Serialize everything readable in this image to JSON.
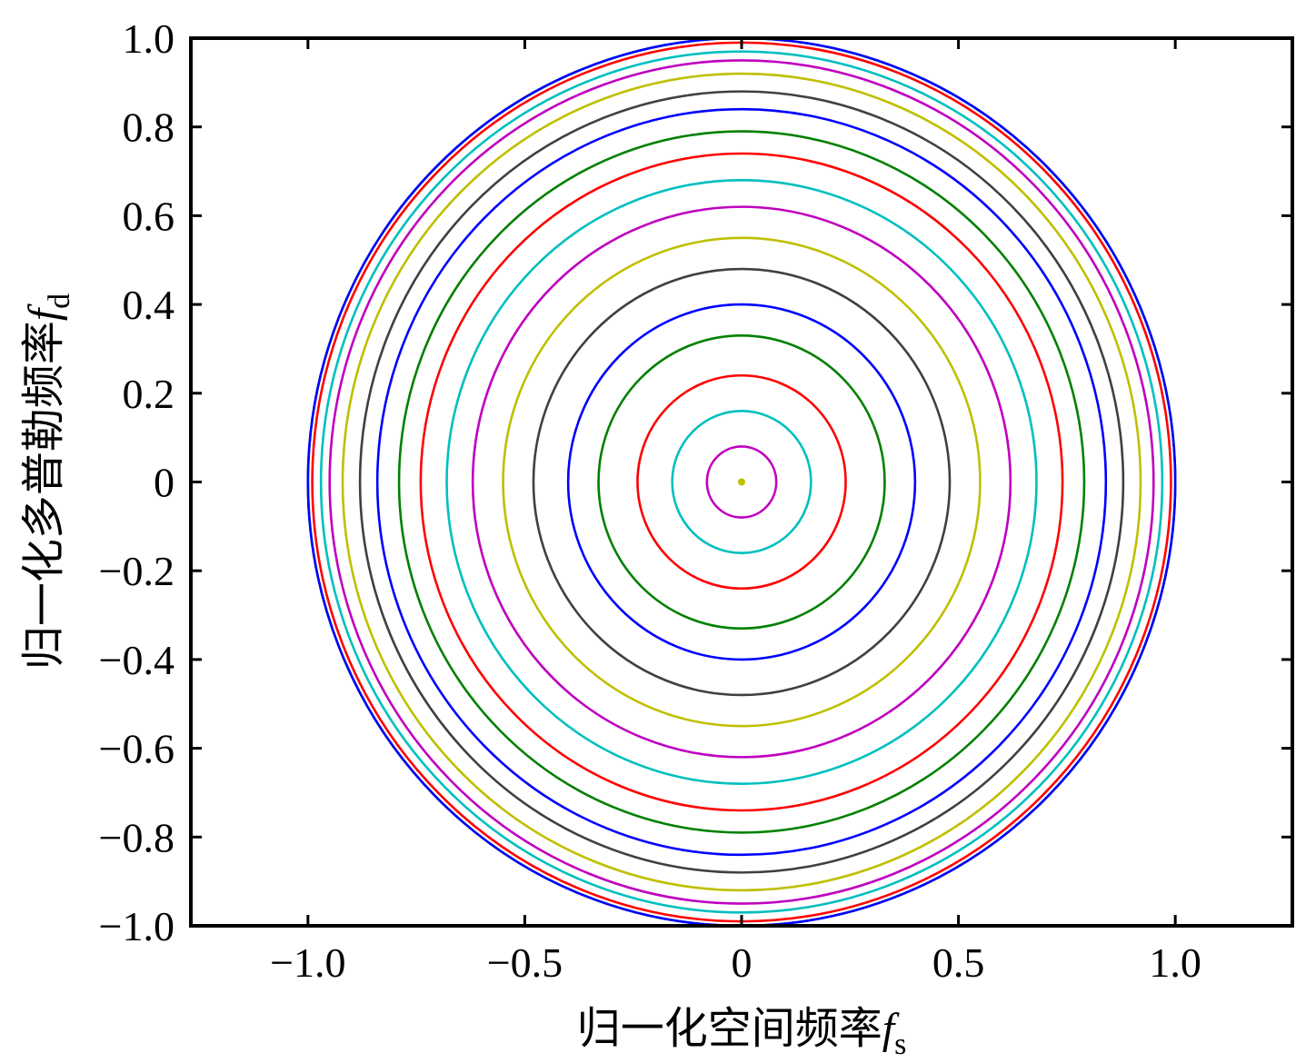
{
  "chart_data": {
    "type": "line",
    "xlim": [
      -1.27,
      1.27
    ],
    "ylim": [
      -1.0,
      1.0
    ],
    "x_ticks": [
      {
        "value": -1.0,
        "label": "−1.0"
      },
      {
        "value": -0.5,
        "label": "−0.5"
      },
      {
        "value": 0,
        "label": "0"
      },
      {
        "value": 0.5,
        "label": "0.5"
      },
      {
        "value": 1.0,
        "label": "1.0"
      }
    ],
    "y_ticks": [
      {
        "value": 1.0,
        "label": "1.0"
      },
      {
        "value": 0.8,
        "label": "0.8"
      },
      {
        "value": 0.6,
        "label": "0.6"
      },
      {
        "value": 0.4,
        "label": "0.4"
      },
      {
        "value": 0.2,
        "label": "0.2"
      },
      {
        "value": 0,
        "label": "0"
      },
      {
        "value": -0.2,
        "label": "−0.2"
      },
      {
        "value": -0.4,
        "label": "−0.4"
      },
      {
        "value": -0.6,
        "label": "−0.6"
      },
      {
        "value": -0.8,
        "label": "−0.8"
      },
      {
        "value": -1.0,
        "label": "−1.0"
      }
    ],
    "xlabel": {
      "text": "归一化空间频率",
      "symbol": "f",
      "subscript": "s"
    },
    "ylabel": {
      "text": "归一化多普勒频率",
      "symbol": "f",
      "subscript": "d"
    },
    "grid": false,
    "series": [
      {
        "radius": 0.0,
        "color": "#bfbf00"
      },
      {
        "radius": 0.08,
        "color": "#bf00bf"
      },
      {
        "radius": 0.16,
        "color": "#00bfbf"
      },
      {
        "radius": 0.24,
        "color": "#ff0000"
      },
      {
        "radius": 0.33,
        "color": "#008000"
      },
      {
        "radius": 0.4,
        "color": "#0000ff"
      },
      {
        "radius": 0.48,
        "color": "#404040"
      },
      {
        "radius": 0.55,
        "color": "#bfbf00"
      },
      {
        "radius": 0.62,
        "color": "#bf00bf"
      },
      {
        "radius": 0.68,
        "color": "#00bfbf"
      },
      {
        "radius": 0.74,
        "color": "#ff0000"
      },
      {
        "radius": 0.79,
        "color": "#008000"
      },
      {
        "radius": 0.84,
        "color": "#0000ff"
      },
      {
        "radius": 0.88,
        "color": "#404040"
      },
      {
        "radius": 0.92,
        "color": "#bfbf00"
      },
      {
        "radius": 0.95,
        "color": "#bf00bf"
      },
      {
        "radius": 0.97,
        "color": "#00bfbf"
      },
      {
        "radius": 0.99,
        "color": "#ff0000"
      },
      {
        "radius": 1.0,
        "color": "#008000"
      },
      {
        "radius": 1.0,
        "color": "#0000ff"
      }
    ]
  }
}
